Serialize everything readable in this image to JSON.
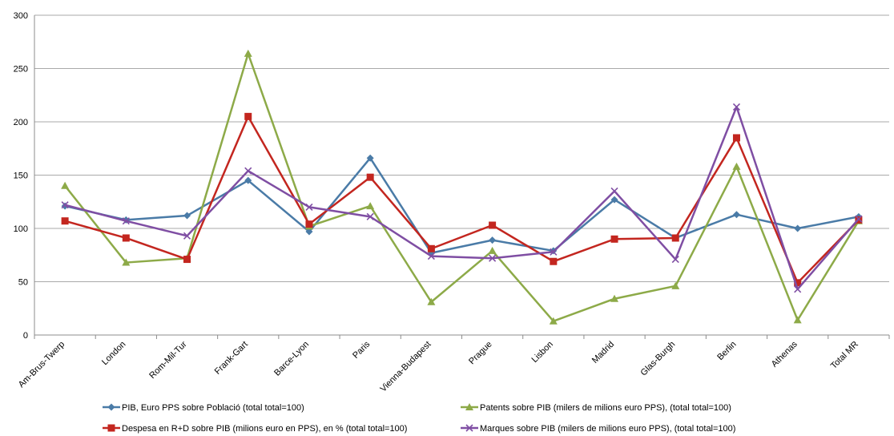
{
  "chart_data": {
    "type": "line",
    "title": "",
    "xlabel": "",
    "ylabel": "",
    "ylim": [
      0,
      300
    ],
    "yticks": [
      0,
      50,
      100,
      150,
      200,
      250,
      300
    ],
    "grid": true,
    "legend_position": "bottom",
    "categories": [
      "Am-Brus-Twerp",
      "London",
      "Rom-Mil-Tur",
      "Frank-Gart",
      "Barce-Lyon",
      "Paris",
      "Vienna-Budapest",
      "Prague",
      "Lisbon",
      "Madrid",
      "Glas-Burgh",
      "Berlin",
      "Athenas",
      "Total MR"
    ],
    "series": [
      {
        "name": "PIB, Euro PPS sobre Població (total total=100)",
        "color": "#4a7ba7",
        "marker": "diamond",
        "values": [
          121,
          108,
          112,
          145,
          97,
          166,
          77,
          89,
          79,
          127,
          91,
          113,
          100,
          111
        ]
      },
      {
        "name": "Patents sobre PIB (milers de milions euro PPS),  (total total=100)",
        "color": "#8daa48",
        "marker": "triangle",
        "values": [
          140,
          68,
          72,
          264,
          102,
          121,
          31,
          79,
          13,
          34,
          46,
          158,
          14,
          107
        ]
      },
      {
        "name": "Despesa en R+D sobre PIB (milions euro en PPS), en % (total total=100)",
        "color": "#c3261f",
        "marker": "square",
        "values": [
          107,
          91,
          71,
          205,
          104,
          148,
          81,
          103,
          69,
          90,
          91,
          185,
          49,
          108
        ]
      },
      {
        "name": "Marques sobre PIB (milers de milions euro PPS),  (total total=100)",
        "color": "#7f4ea3",
        "marker": "x",
        "values": [
          122,
          107,
          93,
          154,
          120,
          111,
          74,
          72,
          78,
          135,
          71,
          214,
          43,
          109
        ]
      }
    ]
  }
}
